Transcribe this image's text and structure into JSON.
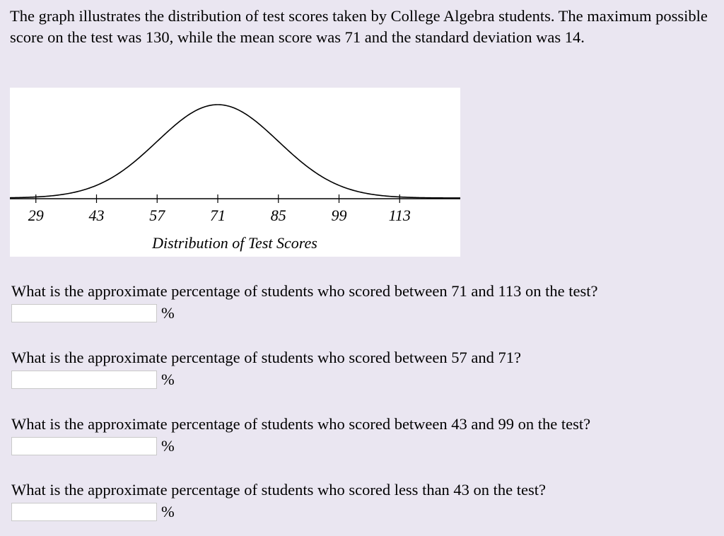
{
  "intro_text": "The graph illustrates the distribution of test scores taken by College Algebra students. The maximum possible score on the test was 130, while the mean score was 71 and the standard deviation was 14.",
  "chart_data": {
    "type": "line",
    "mean": 71,
    "sd": 14,
    "x_ticks": [
      "29",
      "43",
      "57",
      "71",
      "85",
      "99",
      "113"
    ],
    "x_range": [
      23,
      127
    ],
    "xlabel": "Distribution of Test Scores",
    "title": "",
    "ylabel": "",
    "grid": false,
    "legend": false
  },
  "questions": [
    {
      "text": "What is the approximate percentage of students who scored between 71 and 113 on the test?",
      "value": "",
      "unit": "%"
    },
    {
      "text": "What is the approximate percentage of students who scored between 57 and 71?",
      "value": "",
      "unit": "%"
    },
    {
      "text": "What is the approximate percentage of students who scored between 43 and 99 on the test?",
      "value": "",
      "unit": "%"
    },
    {
      "text": "What is the approximate percentage of students who scored less than 43 on the test?",
      "value": "",
      "unit": "%"
    }
  ]
}
